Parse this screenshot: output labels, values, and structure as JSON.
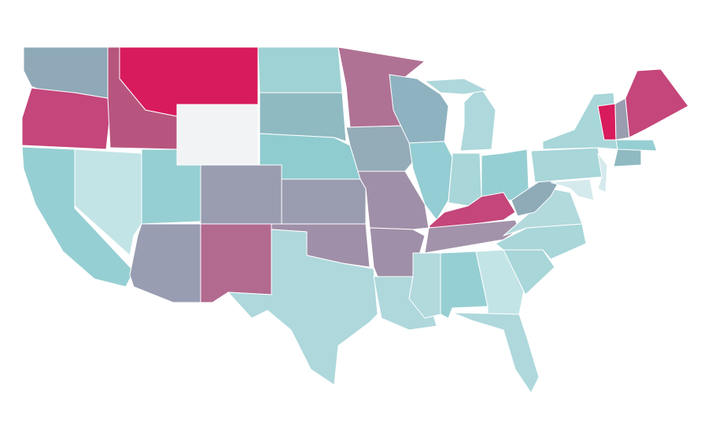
{
  "map": {
    "regions": [
      {
        "color": "#8fa9b8"
      },
      {
        "color": "#c4467a"
      },
      {
        "color": "#96cfd3"
      },
      {
        "color": "#c3e4e6"
      },
      {
        "color": "#b8557f"
      },
      {
        "color": "#d81b5c"
      },
      {
        "color": "#f2f3f5"
      },
      {
        "color": "#96cfd3"
      },
      {
        "color": "#9a9db0"
      },
      {
        "color": "#999db2"
      },
      {
        "color": "#b26a8e"
      },
      {
        "color": "#9fd2d4"
      },
      {
        "color": "#8fbac2"
      },
      {
        "color": "#8fccd0"
      },
      {
        "color": "#9a9db0"
      },
      {
        "color": "#a08fa8"
      },
      {
        "color": "#aed8dc"
      },
      {
        "color": "#b07294"
      },
      {
        "color": "#94abb8"
      },
      {
        "color": "#a08fa8"
      },
      {
        "color": "#a08fa8"
      },
      {
        "color": "#aed8dc"
      },
      {
        "color": "#8fb2c0"
      },
      {
        "color": "#94cdd3"
      },
      {
        "color": "#b2d9dc"
      },
      {
        "color": "#aed8dc"
      },
      {
        "color": "#aed8dc"
      },
      {
        "color": "#a8d6d9"
      },
      {
        "color": "#96cfd3"
      },
      {
        "color": "#c4467a"
      },
      {
        "color": "#a293ab"
      },
      {
        "color": "#96cfd3"
      },
      {
        "color": "#c3e4e6"
      },
      {
        "color": "#aed8dc"
      },
      {
        "color": "#a8d6d9"
      },
      {
        "color": "#a8d6d9"
      },
      {
        "color": "#b2d9dc"
      },
      {
        "color": "#8fabb8"
      },
      {
        "color": "#a8d6d9"
      },
      {
        "color": "#a8d6d9"
      },
      {
        "color": "#d5eaed"
      },
      {
        "color": "#d5eaed"
      },
      {
        "color": "#8fbac2"
      },
      {
        "color": "#96cfd3"
      },
      {
        "color": "#d81b5c"
      },
      {
        "color": "#9a9db0"
      },
      {
        "color": "#c4467a"
      }
    ]
  }
}
